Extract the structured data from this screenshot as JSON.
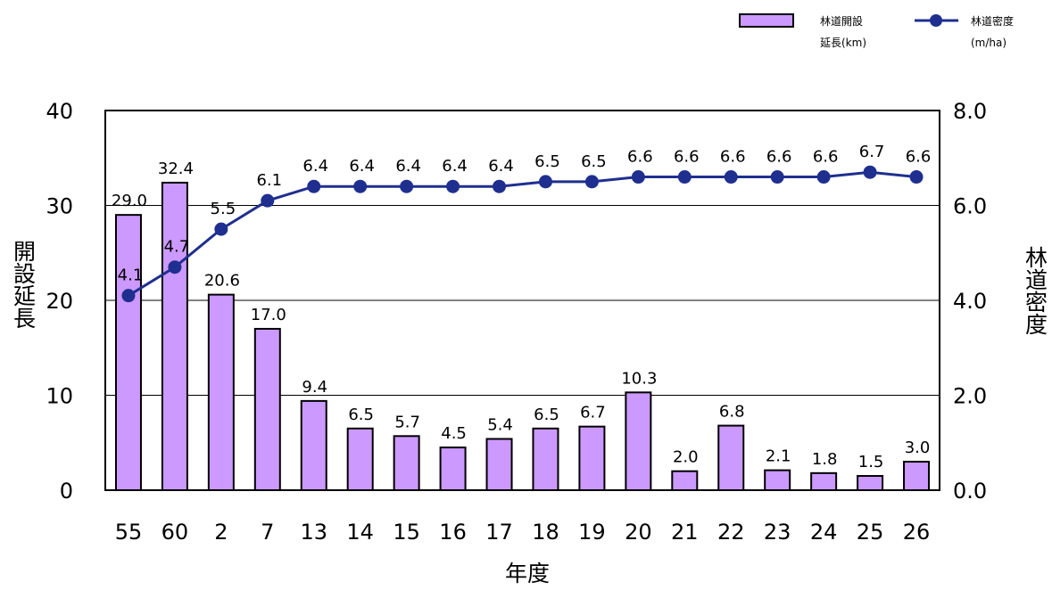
{
  "chart_data": {
    "type": "bar",
    "categories": [
      "55",
      "60",
      "2",
      "7",
      "13",
      "14",
      "15",
      "16",
      "17",
      "18",
      "19",
      "20",
      "21",
      "22",
      "23",
      "24",
      "25",
      "26"
    ],
    "series": [
      {
        "name": "林道開設延長(km)",
        "type": "bar",
        "axis": "left",
        "color": "#cc99ff",
        "values": [
          29.0,
          32.4,
          20.6,
          17.0,
          9.4,
          6.5,
          5.7,
          4.5,
          5.4,
          6.5,
          6.7,
          10.3,
          2.0,
          6.8,
          2.1,
          1.8,
          1.5,
          3.0
        ],
        "labels": [
          "29.0",
          "32.4",
          "20.6",
          "17.0",
          "9.4",
          "6.5",
          "5.7",
          "4.5",
          "5.4",
          "6.5",
          "6.7",
          "10.3",
          "2.0",
          "6.8",
          "2.1",
          "1.8",
          "1.5",
          "3.0"
        ]
      },
      {
        "name": "林道密度(m/ha)",
        "type": "line",
        "axis": "right",
        "color": "#1f2f8f",
        "values": [
          4.1,
          4.7,
          5.5,
          6.1,
          6.4,
          6.4,
          6.4,
          6.4,
          6.4,
          6.5,
          6.5,
          6.6,
          6.6,
          6.6,
          6.6,
          6.6,
          6.7,
          6.6
        ],
        "labels": [
          "4.1",
          "4.7",
          "5.5",
          "6.1",
          "6.4",
          "6.4",
          "6.4",
          "6.4",
          "6.4",
          "6.5",
          "6.5",
          "6.6",
          "6.6",
          "6.6",
          "6.6",
          "6.6",
          "6.7",
          "6.6"
        ]
      }
    ],
    "left_axis": {
      "label": "開設延長",
      "ylim": [
        0,
        40
      ],
      "ticks": [
        "0",
        "10",
        "20",
        "30",
        "40"
      ]
    },
    "right_axis": {
      "label": "林道密度",
      "ylim": [
        0,
        8
      ],
      "ticks": [
        "0.0",
        "2.0",
        "4.0",
        "6.0",
        "8.0"
      ]
    },
    "x_axis": {
      "label": "年度"
    },
    "grid": true,
    "legend": {
      "placement": "top-right",
      "bar_lines": [
        "林道開設",
        "延長(km)"
      ],
      "line_lines": [
        "林道密度",
        "(m/ha)"
      ]
    }
  }
}
